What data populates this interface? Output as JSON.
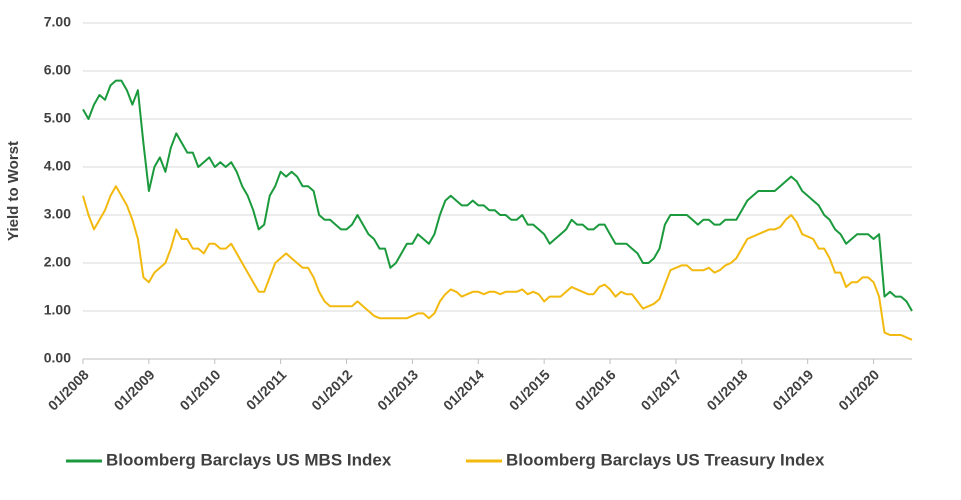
{
  "chart_data": {
    "type": "line",
    "y_label": "Yield to Worst",
    "x": [
      "01/2008",
      "02/2008",
      "03/2008",
      "04/2008",
      "05/2008",
      "06/2008",
      "07/2008",
      "08/2008",
      "09/2008",
      "10/2008",
      "11/2008",
      "12/2008",
      "01/2009",
      "02/2009",
      "03/2009",
      "04/2009",
      "05/2009",
      "06/2009",
      "07/2009",
      "08/2009",
      "09/2009",
      "10/2009",
      "11/2009",
      "12/2009",
      "01/2010",
      "02/2010",
      "03/2010",
      "04/2010",
      "05/2010",
      "06/2010",
      "07/2010",
      "08/2010",
      "09/2010",
      "10/2010",
      "11/2010",
      "12/2010",
      "01/2011",
      "02/2011",
      "03/2011",
      "04/2011",
      "05/2011",
      "06/2011",
      "07/2011",
      "08/2011",
      "09/2011",
      "10/2011",
      "11/2011",
      "12/2011",
      "01/2012",
      "02/2012",
      "03/2012",
      "04/2012",
      "05/2012",
      "06/2012",
      "07/2012",
      "08/2012",
      "09/2012",
      "10/2012",
      "11/2012",
      "12/2012",
      "01/2013",
      "02/2013",
      "03/2013",
      "04/2013",
      "05/2013",
      "06/2013",
      "07/2013",
      "08/2013",
      "09/2013",
      "10/2013",
      "11/2013",
      "12/2013",
      "01/2014",
      "02/2014",
      "03/2014",
      "04/2014",
      "05/2014",
      "06/2014",
      "07/2014",
      "08/2014",
      "09/2014",
      "10/2014",
      "11/2014",
      "12/2014",
      "01/2015",
      "02/2015",
      "03/2015",
      "04/2015",
      "05/2015",
      "06/2015",
      "07/2015",
      "08/2015",
      "09/2015",
      "10/2015",
      "11/2015",
      "12/2015",
      "01/2016",
      "02/2016",
      "03/2016",
      "04/2016",
      "05/2016",
      "06/2016",
      "07/2016",
      "08/2016",
      "09/2016",
      "10/2016",
      "11/2016",
      "12/2016",
      "01/2017",
      "02/2017",
      "03/2017",
      "04/2017",
      "05/2017",
      "06/2017",
      "07/2017",
      "08/2017",
      "09/2017",
      "10/2017",
      "11/2017",
      "12/2017",
      "01/2018",
      "02/2018",
      "03/2018",
      "04/2018",
      "05/2018",
      "06/2018",
      "07/2018",
      "08/2018",
      "09/2018",
      "10/2018",
      "11/2018",
      "12/2018",
      "01/2019",
      "02/2019",
      "03/2019",
      "04/2019",
      "05/2019",
      "06/2019",
      "07/2019",
      "08/2019",
      "09/2019",
      "10/2019",
      "11/2019",
      "12/2019",
      "01/2020",
      "02/2020",
      "03/2020",
      "04/2020",
      "05/2020",
      "06/2020",
      "07/2020",
      "08/2020"
    ],
    "series": [
      {
        "name": "Bloomberg Barclays US MBS Index",
        "color": "#1a9a3c",
        "values": [
          5.2,
          5.0,
          5.3,
          5.5,
          5.4,
          5.7,
          5.8,
          5.8,
          5.6,
          5.3,
          5.6,
          4.5,
          3.5,
          4.0,
          4.2,
          3.9,
          4.4,
          4.7,
          4.5,
          4.3,
          4.3,
          4.0,
          4.1,
          4.2,
          4.0,
          4.1,
          4.0,
          4.1,
          3.9,
          3.6,
          3.4,
          3.1,
          2.7,
          2.8,
          3.4,
          3.6,
          3.9,
          3.8,
          3.9,
          3.8,
          3.6,
          3.6,
          3.5,
          3.0,
          2.9,
          2.9,
          2.8,
          2.7,
          2.7,
          2.8,
          3.0,
          2.8,
          2.6,
          2.5,
          2.3,
          2.3,
          1.9,
          2.0,
          2.2,
          2.4,
          2.4,
          2.6,
          2.5,
          2.4,
          2.6,
          3.0,
          3.3,
          3.4,
          3.3,
          3.2,
          3.2,
          3.3,
          3.2,
          3.2,
          3.1,
          3.1,
          3.0,
          3.0,
          2.9,
          2.9,
          3.0,
          2.8,
          2.8,
          2.7,
          2.6,
          2.4,
          2.5,
          2.6,
          2.7,
          2.9,
          2.8,
          2.8,
          2.7,
          2.7,
          2.8,
          2.8,
          2.6,
          2.4,
          2.4,
          2.4,
          2.3,
          2.2,
          2.0,
          2.0,
          2.1,
          2.3,
          2.8,
          3.0,
          3.0,
          3.0,
          3.0,
          2.9,
          2.8,
          2.9,
          2.9,
          2.8,
          2.8,
          2.9,
          2.9,
          2.9,
          3.1,
          3.3,
          3.4,
          3.5,
          3.5,
          3.5,
          3.5,
          3.6,
          3.7,
          3.8,
          3.7,
          3.5,
          3.4,
          3.3,
          3.2,
          3.0,
          2.9,
          2.7,
          2.6,
          2.4,
          2.5,
          2.6,
          2.6,
          2.6,
          2.5,
          2.6,
          1.3,
          1.4,
          1.3,
          1.3,
          1.2,
          1.0
        ]
      },
      {
        "name": "Bloomberg Barclays US Treasury Index",
        "color": "#f2b90f",
        "values": [
          3.4,
          3.0,
          2.7,
          2.9,
          3.1,
          3.4,
          3.6,
          3.4,
          3.2,
          2.9,
          2.5,
          1.7,
          1.6,
          1.8,
          1.9,
          2.0,
          2.3,
          2.7,
          2.5,
          2.5,
          2.3,
          2.3,
          2.2,
          2.4,
          2.4,
          2.3,
          2.3,
          2.4,
          2.2,
          2.0,
          1.8,
          1.6,
          1.4,
          1.4,
          1.7,
          2.0,
          2.1,
          2.2,
          2.1,
          2.0,
          1.9,
          1.9,
          1.7,
          1.4,
          1.2,
          1.1,
          1.1,
          1.1,
          1.1,
          1.1,
          1.2,
          1.1,
          1.0,
          0.9,
          0.85,
          0.85,
          0.85,
          0.85,
          0.85,
          0.85,
          0.9,
          0.95,
          0.95,
          0.85,
          0.95,
          1.2,
          1.35,
          1.45,
          1.4,
          1.3,
          1.35,
          1.4,
          1.4,
          1.35,
          1.4,
          1.4,
          1.35,
          1.4,
          1.4,
          1.4,
          1.45,
          1.35,
          1.4,
          1.35,
          1.2,
          1.3,
          1.3,
          1.3,
          1.4,
          1.5,
          1.45,
          1.4,
          1.35,
          1.35,
          1.5,
          1.55,
          1.45,
          1.3,
          1.4,
          1.35,
          1.35,
          1.2,
          1.05,
          1.1,
          1.15,
          1.25,
          1.55,
          1.85,
          1.9,
          1.95,
          1.95,
          1.85,
          1.85,
          1.85,
          1.9,
          1.8,
          1.85,
          1.95,
          2.0,
          2.1,
          2.3,
          2.5,
          2.55,
          2.6,
          2.65,
          2.7,
          2.7,
          2.75,
          2.9,
          3.0,
          2.85,
          2.6,
          2.55,
          2.5,
          2.3,
          2.3,
          2.1,
          1.8,
          1.8,
          1.5,
          1.6,
          1.6,
          1.7,
          1.7,
          1.6,
          1.3,
          0.55,
          0.5,
          0.5,
          0.5,
          0.45,
          0.4
        ]
      }
    ],
    "xlim": [
      "01/2008",
      "08/2020"
    ],
    "xticks": [
      "01/2008",
      "01/2009",
      "01/2010",
      "01/2011",
      "01/2012",
      "01/2013",
      "01/2014",
      "01/2015",
      "01/2016",
      "01/2017",
      "01/2018",
      "01/2019",
      "01/2020"
    ],
    "ylim": [
      0,
      7
    ],
    "yticks": [
      {
        "value": 0,
        "label": "0.00"
      },
      {
        "value": 1,
        "label": "1.00"
      },
      {
        "value": 2,
        "label": "2.00"
      },
      {
        "value": 3,
        "label": "3.00"
      },
      {
        "value": 4,
        "label": "4.00"
      },
      {
        "value": 5,
        "label": "5.00"
      },
      {
        "value": 6,
        "label": "6.00"
      },
      {
        "value": 7,
        "label": "7.00"
      }
    ],
    "grid": true,
    "legend": "bottom"
  }
}
